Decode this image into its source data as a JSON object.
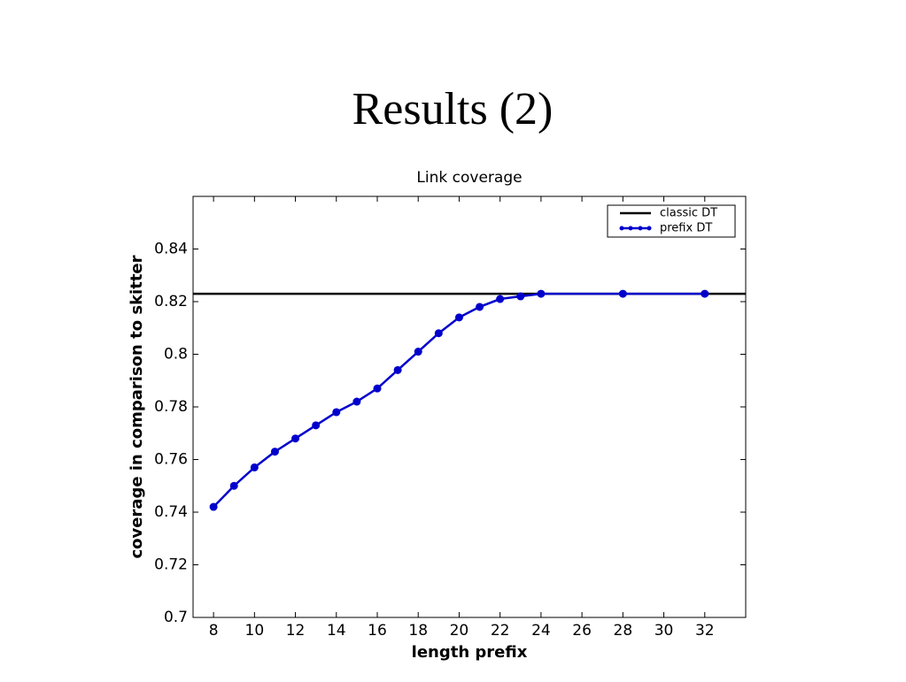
{
  "slide_title": "Results (2)",
  "chart_data": {
    "type": "line",
    "title": "Link coverage",
    "xlabel": "length prefix",
    "ylabel": "coverage in comparison to skitter",
    "x": [
      8,
      9,
      10,
      11,
      12,
      13,
      14,
      15,
      16,
      17,
      18,
      19,
      20,
      21,
      22,
      23,
      24,
      28,
      32
    ],
    "series": [
      {
        "name": "classic DT",
        "color": "#000000",
        "hline": 0.823
      },
      {
        "name": "prefix DT",
        "color": "#0000cc",
        "values": [
          0.742,
          0.75,
          0.757,
          0.763,
          0.768,
          0.773,
          0.778,
          0.782,
          0.787,
          0.794,
          0.801,
          0.808,
          0.814,
          0.818,
          0.821,
          0.822,
          0.823,
          0.823,
          0.823
        ]
      }
    ],
    "xlim": [
      7,
      34
    ],
    "ylim": [
      0.7,
      0.86
    ],
    "xticks": [
      8,
      10,
      12,
      14,
      16,
      18,
      20,
      22,
      24,
      26,
      28,
      30,
      32
    ],
    "yticks": [
      0.7,
      0.72,
      0.74,
      0.76,
      0.78,
      0.8,
      0.82,
      0.84
    ],
    "grid": false,
    "legend": "upper right"
  }
}
